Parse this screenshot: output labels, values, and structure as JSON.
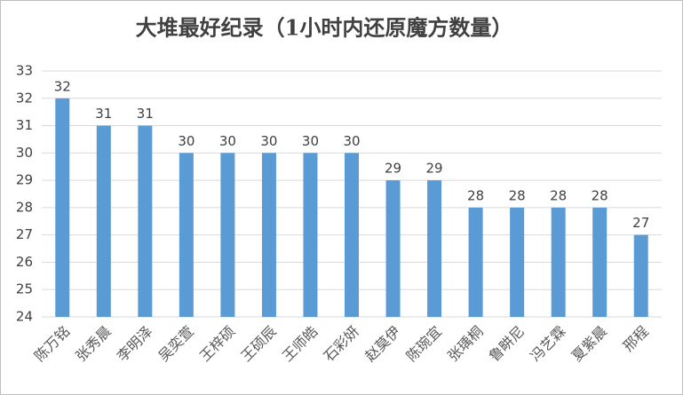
{
  "chart_data": {
    "type": "bar",
    "title": "大堆最好纪录（1小时内还原魔方数量）",
    "categories": [
      "陈万铭",
      "张秀晨",
      "李明泽",
      "吴奕萱",
      "王梓硕",
      "王硕辰",
      "王师皓",
      "石彩妍",
      "赵莫伊",
      "陈琬宜",
      "张瑀桐",
      "鲁畊尼",
      "冯艺霖",
      "夏紫晨",
      "邢程"
    ],
    "values": [
      32,
      31,
      31,
      30,
      30,
      30,
      30,
      30,
      29,
      29,
      28,
      28,
      28,
      28,
      27
    ],
    "color": "#5b9bd5",
    "ylim": [
      24,
      33
    ],
    "yticks": [
      24,
      25,
      26,
      27,
      28,
      29,
      30,
      31,
      32,
      33
    ],
    "grid": true
  }
}
